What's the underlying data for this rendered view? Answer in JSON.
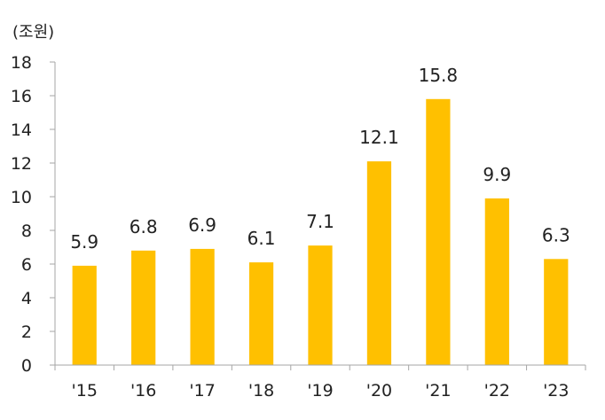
{
  "chart_data": {
    "type": "bar",
    "title": "",
    "unit_label": "(조원)",
    "xlabel": "",
    "ylabel": "",
    "categories": [
      "'15",
      "'16",
      "'17",
      "'18",
      "'19",
      "'20",
      "'21",
      "'22",
      "'23"
    ],
    "values": [
      5.9,
      6.8,
      6.9,
      6.1,
      7.1,
      12.1,
      15.8,
      9.9,
      6.3
    ],
    "data_labels": [
      "5.9",
      "6.8",
      "6.9",
      "6.1",
      "7.1",
      "12.1",
      "15.8",
      "9.9",
      "6.3"
    ],
    "ylim": [
      0,
      18
    ],
    "yticks": [
      0,
      2,
      4,
      6,
      8,
      10,
      12,
      14,
      16,
      18
    ],
    "ytick_labels": [
      "0",
      "2",
      "4",
      "6",
      "8",
      "10",
      "12",
      "14",
      "16",
      "18"
    ],
    "grid": false,
    "legend": "none",
    "bar_color": "#FFC000",
    "axis_color": "#A6A6A6"
  }
}
